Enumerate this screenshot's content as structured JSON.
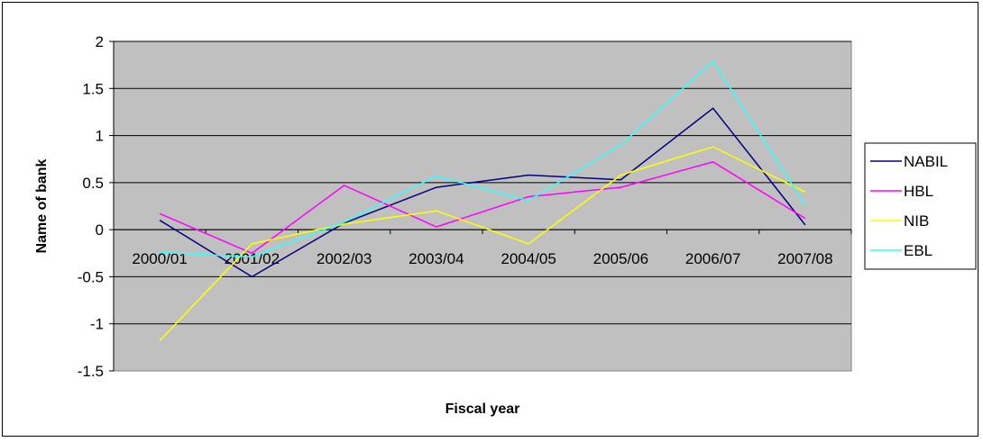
{
  "chart_data": {
    "type": "line",
    "title": "",
    "xlabel": "Fiscal year",
    "ylabel": "Name of bank",
    "categories": [
      "2000/01",
      "2001/02",
      "2002/03",
      "2003/04",
      "2004/05",
      "2005/06",
      "2006/07",
      "2007/08"
    ],
    "ylim": [
      -1.5,
      2
    ],
    "yticks": [
      2,
      1.5,
      1,
      0.5,
      0,
      -0.5,
      -1,
      -1.5
    ],
    "ytick_labels": [
      "2",
      "1.5",
      "1",
      "0.5",
      "0",
      "-0.5",
      "-1",
      "-1.5"
    ],
    "grid": true,
    "legend_position": "right",
    "plot_background": "#c0c0c0",
    "series": [
      {
        "name": "NABIL",
        "color": "#000080",
        "values": [
          0.1,
          -0.5,
          0.07,
          0.45,
          0.58,
          0.53,
          1.29,
          0.05
        ]
      },
      {
        "name": "HBL",
        "color": "#ff00ff",
        "values": [
          0.17,
          -0.25,
          0.47,
          0.03,
          0.35,
          0.45,
          0.72,
          0.12
        ]
      },
      {
        "name": "NIB",
        "color": "#ffff00",
        "values": [
          -1.18,
          -0.15,
          0.06,
          0.2,
          -0.15,
          0.58,
          0.88,
          0.4
        ]
      },
      {
        "name": "EBL",
        "color": "#33ffff",
        "values": [
          -0.24,
          -0.29,
          0.08,
          0.57,
          0.31,
          0.9,
          1.79,
          0.26
        ]
      }
    ]
  }
}
